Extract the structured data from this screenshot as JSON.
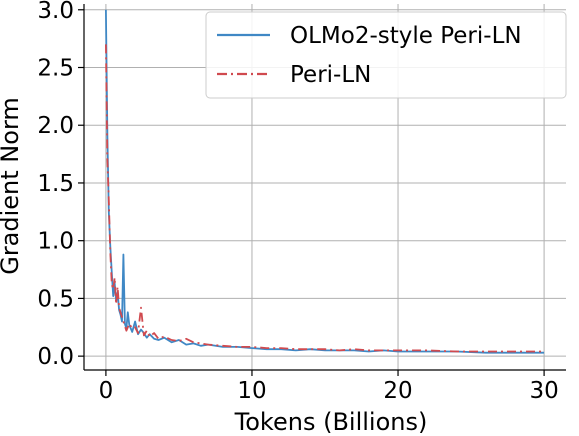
{
  "chart_data": {
    "type": "line",
    "title": "",
    "xlabel": "Tokens (Billions)",
    "ylabel": "Gradient Norm",
    "xlim": [
      -1.5,
      31.5
    ],
    "ylim": [
      -0.12,
      3.05
    ],
    "xticks": [
      0,
      10,
      20,
      30
    ],
    "yticks": [
      0.0,
      0.5,
      1.0,
      1.5,
      2.0,
      2.5,
      3.0
    ],
    "xtick_labels": [
      "0",
      "10",
      "20",
      "30"
    ],
    "ytick_labels": [
      "0.0",
      "0.5",
      "1.0",
      "1.5",
      "2.0",
      "2.5",
      "3.0"
    ],
    "grid": true,
    "legend_position": "upper-right",
    "series": [
      {
        "name": "OLMo2-style Peri-LN",
        "color": "#3f88c5",
        "style": "solid",
        "x": [
          0.0,
          0.1,
          0.2,
          0.3,
          0.4,
          0.5,
          0.6,
          0.7,
          0.8,
          0.9,
          1.0,
          1.1,
          1.2,
          1.3,
          1.4,
          1.5,
          1.6,
          1.8,
          2.0,
          2.2,
          2.4,
          2.6,
          2.8,
          3.0,
          3.3,
          3.6,
          4.0,
          4.5,
          5.0,
          5.5,
          6.0,
          6.5,
          7.0,
          8.0,
          9.0,
          10.0,
          11.0,
          12.0,
          13.0,
          14.0,
          15.0,
          16.0,
          17.0,
          18.0,
          19.0,
          20.0,
          22.0,
          24.0,
          26.0,
          28.0,
          30.0
        ],
        "values": [
          3.0,
          1.9,
          1.25,
          0.95,
          0.72,
          0.52,
          0.63,
          0.48,
          0.55,
          0.4,
          0.36,
          0.3,
          0.88,
          0.28,
          0.24,
          0.38,
          0.27,
          0.21,
          0.3,
          0.19,
          0.23,
          0.2,
          0.16,
          0.19,
          0.15,
          0.14,
          0.16,
          0.12,
          0.14,
          0.1,
          0.11,
          0.09,
          0.1,
          0.08,
          0.08,
          0.07,
          0.06,
          0.06,
          0.05,
          0.06,
          0.05,
          0.05,
          0.05,
          0.04,
          0.05,
          0.04,
          0.04,
          0.04,
          0.03,
          0.03,
          0.03
        ]
      },
      {
        "name": "Peri-LN",
        "color": "#d04a4f",
        "style": "dashdot",
        "x": [
          0.0,
          0.1,
          0.2,
          0.3,
          0.4,
          0.5,
          0.6,
          0.7,
          0.8,
          0.9,
          1.0,
          1.2,
          1.4,
          1.6,
          1.8,
          2.0,
          2.2,
          2.4,
          2.6,
          2.8,
          3.0,
          3.3,
          3.6,
          4.0,
          4.5,
          5.0,
          5.5,
          6.0,
          6.5,
          7.0,
          8.0,
          9.0,
          10.0,
          11.0,
          12.0,
          13.0,
          14.0,
          15.0,
          16.0,
          17.0,
          18.0,
          19.0,
          20.0,
          22.0,
          24.0,
          26.0,
          28.0,
          30.0
        ],
        "values": [
          2.7,
          1.7,
          1.35,
          0.9,
          0.62,
          0.58,
          0.68,
          0.45,
          0.6,
          0.42,
          0.38,
          0.3,
          0.22,
          0.28,
          0.24,
          0.25,
          0.2,
          0.42,
          0.18,
          0.22,
          0.17,
          0.2,
          0.15,
          0.17,
          0.14,
          0.13,
          0.15,
          0.12,
          0.11,
          0.1,
          0.09,
          0.08,
          0.08,
          0.07,
          0.07,
          0.06,
          0.06,
          0.06,
          0.05,
          0.06,
          0.05,
          0.05,
          0.05,
          0.05,
          0.04,
          0.04,
          0.04,
          0.04
        ]
      }
    ]
  }
}
